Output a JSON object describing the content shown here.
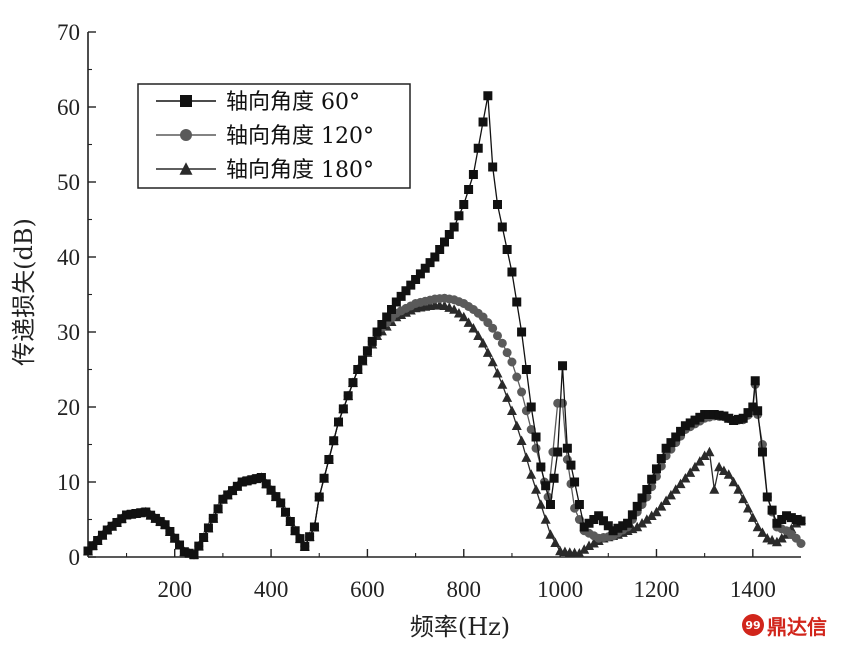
{
  "chart_data": {
    "type": "line",
    "xlabel": "频率(Hz)",
    "ylabel": "传递损失(dB)",
    "xlim": [
      20,
      1500
    ],
    "ylim": [
      0,
      70
    ],
    "xticks": [
      200,
      400,
      600,
      800,
      1000,
      1200,
      1400
    ],
    "yticks": [
      0,
      10,
      20,
      30,
      40,
      50,
      60,
      70
    ],
    "grid": false,
    "legend_position": "top-left",
    "series": [
      {
        "name": "轴向角度 60°",
        "marker": "square",
        "color": "#111111",
        "x": [
          20,
          60,
          100,
          140,
          180,
          220,
          240,
          260,
          300,
          340,
          380,
          420,
          450,
          470,
          490,
          500,
          540,
          580,
          620,
          660,
          700,
          740,
          780,
          800,
          820,
          840,
          850,
          860,
          870,
          880,
          900,
          920,
          940,
          960,
          980,
          995,
          1005,
          1015,
          1030,
          1050,
          1080,
          1110,
          1140,
          1180,
          1220,
          1260,
          1300,
          1320,
          1340,
          1360,
          1380,
          1400,
          1405,
          1410,
          1420,
          1430,
          1450,
          1470,
          1490,
          1500
        ],
        "y": [
          0.8,
          3.6,
          5.6,
          6.0,
          4.3,
          0.7,
          0.3,
          2.6,
          7.7,
          10.0,
          10.6,
          7.2,
          3.5,
          1.4,
          4.0,
          8.0,
          18.0,
          25.0,
          30.0,
          34.0,
          37.0,
          40.0,
          44.0,
          47.0,
          51.0,
          58.0,
          61.5,
          52.0,
          47.0,
          44.0,
          38.0,
          30.0,
          20.0,
          12.0,
          7.0,
          14.0,
          25.5,
          14.5,
          10.0,
          4.0,
          5.5,
          3.5,
          4.5,
          9.0,
          14.5,
          17.5,
          19.0,
          19.0,
          18.8,
          18.2,
          18.5,
          20.0,
          23.5,
          19.5,
          14.0,
          8.0,
          4.5,
          5.5,
          5.0,
          4.8
        ]
      },
      {
        "name": "轴向角度 120°",
        "marker": "circle",
        "color": "#5a5a5a",
        "x": [
          20,
          60,
          100,
          140,
          180,
          220,
          240,
          260,
          300,
          340,
          380,
          420,
          450,
          470,
          490,
          500,
          540,
          580,
          620,
          660,
          700,
          740,
          760,
          780,
          800,
          820,
          840,
          860,
          880,
          900,
          920,
          940,
          960,
          975,
          985,
          995,
          1005,
          1015,
          1030,
          1050,
          1080,
          1110,
          1140,
          1180,
          1220,
          1260,
          1300,
          1320,
          1340,
          1360,
          1380,
          1400,
          1405,
          1410,
          1420,
          1430,
          1450,
          1470,
          1490,
          1500
        ],
        "y": [
          0.8,
          3.6,
          5.6,
          6.0,
          4.3,
          0.7,
          0.3,
          2.6,
          7.7,
          10.0,
          10.6,
          7.2,
          3.5,
          1.4,
          4.0,
          8.0,
          18.0,
          25.0,
          30.0,
          32.5,
          33.8,
          34.4,
          34.5,
          34.3,
          33.8,
          33.0,
          32.0,
          30.5,
          28.5,
          26.0,
          22.0,
          17.0,
          12.0,
          8.0,
          14.0,
          20.5,
          20.5,
          13.0,
          6.5,
          3.5,
          2.5,
          2.8,
          4.0,
          8.0,
          13.5,
          17.0,
          18.5,
          18.8,
          18.7,
          18.2,
          18.3,
          19.5,
          23.0,
          19.0,
          15.0,
          8.0,
          4.0,
          3.5,
          2.5,
          1.8
        ]
      },
      {
        "name": "轴向角度 180°",
        "marker": "triangle",
        "color": "#2a2a2a",
        "x": [
          20,
          60,
          100,
          140,
          180,
          220,
          240,
          260,
          300,
          340,
          380,
          420,
          450,
          470,
          490,
          500,
          540,
          580,
          620,
          660,
          700,
          740,
          760,
          780,
          800,
          820,
          840,
          860,
          880,
          900,
          920,
          940,
          960,
          980,
          1000,
          1020,
          1040,
          1060,
          1090,
          1120,
          1160,
          1200,
          1240,
          1280,
          1300,
          1310,
          1320,
          1330,
          1350,
          1370,
          1390,
          1410,
          1430,
          1450,
          1470,
          1490,
          1500
        ],
        "y": [
          0.8,
          3.6,
          5.6,
          6.0,
          4.3,
          0.7,
          0.3,
          2.6,
          7.7,
          10.0,
          10.6,
          7.2,
          3.5,
          1.4,
          4.0,
          8.0,
          18.0,
          25.0,
          29.5,
          32.0,
          33.2,
          33.6,
          33.5,
          33.0,
          32.0,
          30.5,
          28.5,
          26.0,
          23.0,
          19.5,
          15.5,
          11.0,
          7.0,
          3.0,
          0.8,
          0.6,
          0.5,
          1.5,
          2.5,
          3.0,
          4.0,
          6.0,
          9.0,
          12.0,
          13.5,
          14.0,
          9.0,
          12.0,
          11.0,
          9.0,
          6.5,
          4.0,
          2.5,
          2.0,
          3.0,
          4.5,
          5.0
        ]
      }
    ]
  },
  "watermark": {
    "badge": "99",
    "text": "鼎达信"
  }
}
